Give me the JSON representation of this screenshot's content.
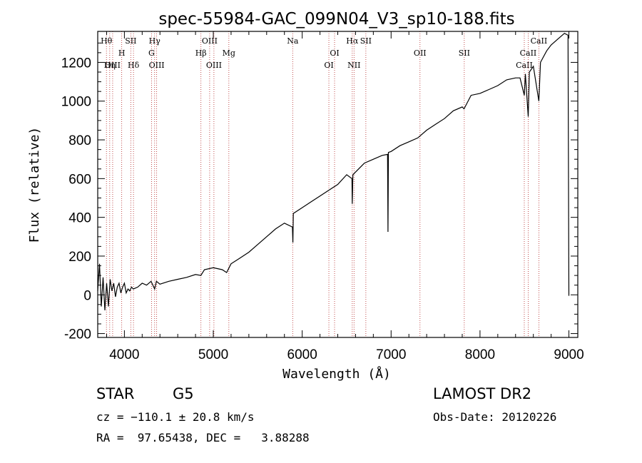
{
  "chart_data": {
    "type": "line",
    "title": "spec-55984-GAC_099N04_V3_sp10-188.fits",
    "xlabel": "Wavelength (Å)",
    "ylabel": "Flux (relative)",
    "xlim": [
      3700,
      9100
    ],
    "ylim": [
      -220,
      1360
    ],
    "xticks": [
      4000,
      5000,
      6000,
      7000,
      8000,
      9000
    ],
    "yticks": [
      -200,
      0,
      200,
      400,
      600,
      800,
      1000,
      1200
    ],
    "grid": false,
    "series": [
      {
        "points": [
          [
            3700,
            20
          ],
          [
            3720,
            160
          ],
          [
            3740,
            -60
          ],
          [
            3760,
            90
          ],
          [
            3780,
            -80
          ],
          [
            3800,
            60
          ],
          [
            3820,
            -60
          ],
          [
            3840,
            80
          ],
          [
            3860,
            20
          ],
          [
            3880,
            60
          ],
          [
            3900,
            -10
          ],
          [
            3920,
            40
          ],
          [
            3940,
            60
          ],
          [
            3960,
            10
          ],
          [
            3980,
            40
          ],
          [
            4000,
            60
          ],
          [
            4020,
            10
          ],
          [
            4040,
            30
          ],
          [
            4060,
            20
          ],
          [
            4080,
            40
          ],
          [
            4100,
            30
          ],
          [
            4150,
            40
          ],
          [
            4200,
            60
          ],
          [
            4250,
            50
          ],
          [
            4300,
            70
          ],
          [
            4340,
            30
          ],
          [
            4360,
            70
          ],
          [
            4400,
            55
          ],
          [
            4500,
            70
          ],
          [
            4600,
            80
          ],
          [
            4700,
            90
          ],
          [
            4800,
            105
          ],
          [
            4860,
            100
          ],
          [
            4900,
            130
          ],
          [
            5000,
            140
          ],
          [
            5100,
            130
          ],
          [
            5150,
            115
          ],
          [
            5200,
            160
          ],
          [
            5300,
            190
          ],
          [
            5400,
            220
          ],
          [
            5500,
            260
          ],
          [
            5600,
            300
          ],
          [
            5700,
            340
          ],
          [
            5800,
            370
          ],
          [
            5890,
            350
          ],
          [
            5895,
            270
          ],
          [
            5900,
            420
          ],
          [
            6000,
            450
          ],
          [
            6100,
            480
          ],
          [
            6200,
            510
          ],
          [
            6300,
            540
          ],
          [
            6400,
            570
          ],
          [
            6500,
            620
          ],
          [
            6560,
            600
          ],
          [
            6563,
            470
          ],
          [
            6570,
            620
          ],
          [
            6700,
            680
          ],
          [
            6800,
            700
          ],
          [
            6900,
            720
          ],
          [
            6960,
            725
          ],
          [
            6965,
            325
          ],
          [
            6970,
            735
          ],
          [
            7000,
            740
          ],
          [
            7100,
            770
          ],
          [
            7200,
            790
          ],
          [
            7300,
            810
          ],
          [
            7400,
            850
          ],
          [
            7500,
            880
          ],
          [
            7600,
            910
          ],
          [
            7700,
            950
          ],
          [
            7800,
            970
          ],
          [
            7820,
            960
          ],
          [
            7900,
            1030
          ],
          [
            8000,
            1040
          ],
          [
            8100,
            1060
          ],
          [
            8200,
            1080
          ],
          [
            8300,
            1110
          ],
          [
            8400,
            1120
          ],
          [
            8450,
            1120
          ],
          [
            8498,
            1030
          ],
          [
            8510,
            1140
          ],
          [
            8542,
            920
          ],
          [
            8555,
            1150
          ],
          [
            8600,
            1180
          ],
          [
            8662,
            1000
          ],
          [
            8680,
            1200
          ],
          [
            8750,
            1260
          ],
          [
            8800,
            1290
          ],
          [
            8850,
            1310
          ],
          [
            8900,
            1330
          ],
          [
            8950,
            1350
          ],
          [
            8990,
            1340
          ],
          [
            9000,
            -5
          ]
        ]
      }
    ],
    "lines": [
      {
        "name": "Hθ",
        "x": 3798,
        "row": 1
      },
      {
        "name": "Hη",
        "x": 3835,
        "row": 3
      },
      {
        "name": "OIII",
        "x": 3868,
        "row": 3
      },
      {
        "name": "H",
        "x": 3970,
        "row": 2
      },
      {
        "name": "SII",
        "x": 4072,
        "row": 1
      },
      {
        "name": "Hδ",
        "x": 4102,
        "row": 3
      },
      {
        "name": "Hγ",
        "x": 4340,
        "row": 1
      },
      {
        "name": "G",
        "x": 4305,
        "row": 2
      },
      {
        "name": "OIII",
        "x": 4363,
        "row": 3
      },
      {
        "name": "Hβ",
        "x": 4861,
        "row": 2
      },
      {
        "name": "OIII",
        "x": 4959,
        "row": 1
      },
      {
        "name": "OIII",
        "x": 5007,
        "row": 3
      },
      {
        "name": "Mg",
        "x": 5175,
        "row": 2
      },
      {
        "name": "Na",
        "x": 5893,
        "row": 1
      },
      {
        "name": "OI",
        "x": 6300,
        "row": 3
      },
      {
        "name": "OI",
        "x": 6364,
        "row": 2
      },
      {
        "name": "Hα",
        "x": 6563,
        "row": 1
      },
      {
        "name": "NII",
        "x": 6583,
        "row": 3
      },
      {
        "name": "SII",
        "x": 6716,
        "row": 1
      },
      {
        "name": "OII",
        "x": 7325,
        "row": 2
      },
      {
        "name": "SII",
        "x": 7823,
        "row": 2
      },
      {
        "name": "CaII",
        "x": 8498,
        "row": 3
      },
      {
        "name": "CaII",
        "x": 8542,
        "row": 2
      },
      {
        "name": "CaII",
        "x": 8662,
        "row": 1
      }
    ]
  },
  "info": {
    "class": "STAR",
    "subclass": "G5",
    "survey": "LAMOST DR2",
    "cz": "cz = −110.1 ± 20.8 km/s",
    "obs_date": "Obs-Date: 20120226",
    "radec": "RA =  97.65438, DEC =   3.88288"
  },
  "colors": {
    "line_marker": "#b22222",
    "spectrum": "#000000",
    "axes": "#000000"
  }
}
